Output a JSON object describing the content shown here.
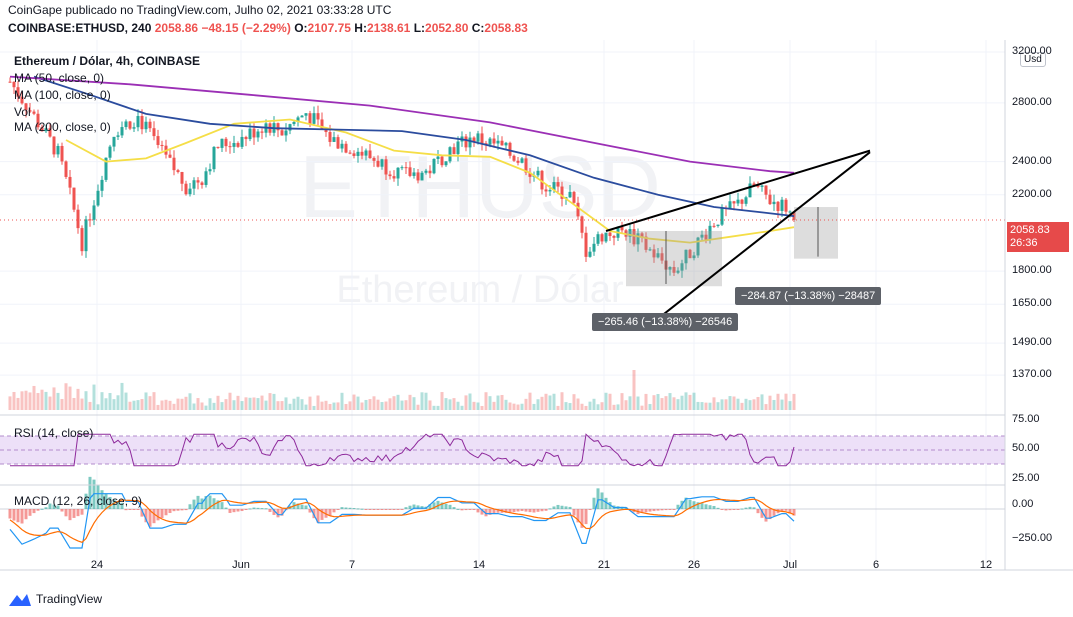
{
  "header": {
    "line1": "CoinGape publicado no TradingView.com, Julho 02, 2021 03:33:28 UTC",
    "symbol": "COINBASE:ETHUSD, 240",
    "last": "2058.86",
    "change": "−48.15 (−2.29%)",
    "o_label": "O:",
    "o": "2107.75",
    "h_label": "H:",
    "h": "2138.61",
    "l_label": "L:",
    "l": "2052.80",
    "c_label": "C:",
    "c": "2058.83"
  },
  "legend": {
    "title": "Ethereum / Dólar, 4h, COINBASE",
    "ma50": "MA (50, close, 0)",
    "ma100": "MA (100, close, 0)",
    "vol": "Vol",
    "ma200": "MA (200, close, 0)"
  },
  "watermark": {
    "ticker": "ETHUSD",
    "name": "Ethereum / Dólar"
  },
  "price_axis": {
    "currency_btn": "Usd",
    "current_price": "2058.83",
    "countdown": "26:36"
  },
  "annotations": {
    "left_measure": "−265.46 (−13.38%) −26546",
    "right_measure": "−284.87 (−13.38%) −28487"
  },
  "rsi": {
    "label": "RSI (14, close)",
    "ticks": [
      "75.00",
      "50.00",
      "25.00"
    ]
  },
  "macd": {
    "label": "MACD (12, 26, close, 9)",
    "ticks": [
      "0.00",
      "−250.00"
    ]
  },
  "footer": {
    "brand": "TradingView"
  },
  "colors": {
    "up": "#26a69a",
    "down": "#ef5350",
    "ma50": "#f5de47",
    "ma100": "#2b4c9e",
    "ma200": "#9b2fb5",
    "rsi_line": "#8e2a9c",
    "rsi_band": "#ede0f8",
    "macd_line": "#2196f3",
    "signal_line": "#ff6d00",
    "wedge": "#000000"
  },
  "chart_data": {
    "type": "candlestick",
    "title": "Ethereum / Dólar, 4h, COINBASE",
    "y_scale": "log",
    "ylim": [
      1250,
      3200
    ],
    "y_ticks": [
      3200,
      2800,
      2400,
      2200,
      1800,
      1650,
      1490,
      1370
    ],
    "y_tick_labels": [
      "3200.00",
      "2800.00",
      "2400.00",
      "2200.00",
      "1800.00",
      "1650.00",
      "1490.00",
      "1370.00"
    ],
    "x_ticks": [
      "24",
      "Jun",
      "7",
      "14",
      "21",
      "26",
      "Jul",
      "6",
      "12"
    ],
    "close_path": [
      [
        0,
        2960
      ],
      [
        6,
        2700
      ],
      [
        12,
        2450
      ],
      [
        18,
        1940
      ],
      [
        22,
        2250
      ],
      [
        26,
        2600
      ],
      [
        32,
        2700
      ],
      [
        38,
        2450
      ],
      [
        44,
        2250
      ],
      [
        48,
        2300
      ],
      [
        52,
        2500
      ],
      [
        58,
        2550
      ],
      [
        64,
        2650
      ],
      [
        68,
        2600
      ],
      [
        74,
        2730
      ],
      [
        80,
        2550
      ],
      [
        86,
        2480
      ],
      [
        92,
        2400
      ],
      [
        98,
        2320
      ],
      [
        104,
        2330
      ],
      [
        110,
        2480
      ],
      [
        116,
        2560
      ],
      [
        122,
        2500
      ],
      [
        128,
        2400
      ],
      [
        134,
        2250
      ],
      [
        140,
        2200
      ],
      [
        144,
        1900
      ],
      [
        148,
        1980
      ],
      [
        154,
        2000
      ],
      [
        160,
        1900
      ],
      [
        166,
        1800
      ],
      [
        170,
        1890
      ],
      [
        176,
        2050
      ],
      [
        182,
        2150
      ],
      [
        186,
        2250
      ],
      [
        190,
        2170
      ],
      [
        194,
        2130
      ],
      [
        196,
        2060
      ]
    ],
    "series": [
      {
        "name": "MA (50, close, 0)",
        "path": [
          [
            14,
            2540
          ],
          [
            24,
            2400
          ],
          [
            34,
            2420
          ],
          [
            44,
            2520
          ],
          [
            56,
            2650
          ],
          [
            70,
            2680
          ],
          [
            84,
            2590
          ],
          [
            96,
            2470
          ],
          [
            108,
            2440
          ],
          [
            120,
            2430
          ],
          [
            130,
            2330
          ],
          [
            140,
            2160
          ],
          [
            150,
            2000
          ],
          [
            160,
            1960
          ],
          [
            170,
            1940
          ],
          [
            180,
            1970
          ],
          [
            190,
            2000
          ],
          [
            196,
            2020
          ]
        ]
      },
      {
        "name": "MA (100, close, 0)",
        "path": [
          [
            6,
            3000
          ],
          [
            20,
            2860
          ],
          [
            34,
            2720
          ],
          [
            50,
            2650
          ],
          [
            66,
            2620
          ],
          [
            82,
            2610
          ],
          [
            98,
            2600
          ],
          [
            114,
            2540
          ],
          [
            130,
            2440
          ],
          [
            146,
            2300
          ],
          [
            162,
            2200
          ],
          [
            176,
            2130
          ],
          [
            188,
            2100
          ],
          [
            196,
            2080
          ]
        ]
      },
      {
        "name": "MA (200, close, 0)",
        "path": [
          [
            0,
            3000
          ],
          [
            30,
            2940
          ],
          [
            60,
            2860
          ],
          [
            90,
            2780
          ],
          [
            120,
            2660
          ],
          [
            150,
            2500
          ],
          [
            170,
            2400
          ],
          [
            190,
            2340
          ],
          [
            196,
            2330
          ]
        ]
      }
    ],
    "wedge_upper": [
      [
        149,
        2000
      ],
      [
        215,
        2470
      ]
    ],
    "wedge_lower": [
      [
        159,
        1550
      ],
      [
        215,
        2460
      ]
    ],
    "volume_peak_bar": 156,
    "rsi_range": [
      0,
      100
    ],
    "macd_range": [
      -300,
      100
    ]
  }
}
